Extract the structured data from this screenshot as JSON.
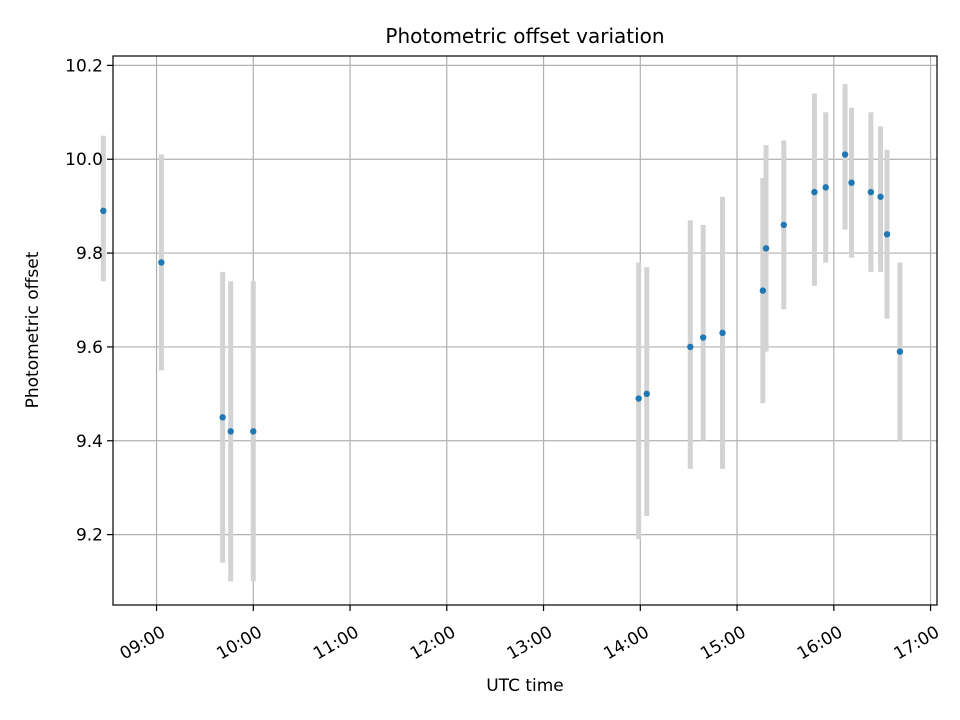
{
  "chart_data": {
    "type": "scatter",
    "title": "Photometric offset variation",
    "xlabel": "UTC time",
    "ylabel": "Photometric offset",
    "x_axis_type": "time",
    "xlim": [
      "08:33",
      "17:04"
    ],
    "ylim": [
      9.05,
      10.22
    ],
    "x_ticks": [
      "09:00",
      "10:00",
      "11:00",
      "12:00",
      "13:00",
      "14:00",
      "15:00",
      "16:00",
      "17:00"
    ],
    "y_ticks": [
      "9.2",
      "9.4",
      "9.6",
      "9.8",
      "10.0",
      "10.2"
    ],
    "grid": true,
    "colors": {
      "point": "#1f77b4",
      "errorbar": "#d3d3d3",
      "grid": "#b0b0b0"
    },
    "points": [
      {
        "x": "08:27",
        "y": 9.89,
        "yerr_low": 9.74,
        "yerr_high": 10.05
      },
      {
        "x": "09:03",
        "y": 9.78,
        "yerr_low": 9.55,
        "yerr_high": 10.01
      },
      {
        "x": "09:41",
        "y": 9.45,
        "yerr_low": 9.14,
        "yerr_high": 9.76
      },
      {
        "x": "09:46",
        "y": 9.42,
        "yerr_low": 9.1,
        "yerr_high": 9.74
      },
      {
        "x": "10:00",
        "y": 9.42,
        "yerr_low": 9.1,
        "yerr_high": 9.74
      },
      {
        "x": "13:59",
        "y": 9.49,
        "yerr_low": 9.19,
        "yerr_high": 9.78
      },
      {
        "x": "14:04",
        "y": 9.5,
        "yerr_low": 9.24,
        "yerr_high": 9.77
      },
      {
        "x": "14:31",
        "y": 9.6,
        "yerr_low": 9.34,
        "yerr_high": 9.87
      },
      {
        "x": "14:39",
        "y": 9.62,
        "yerr_low": 9.4,
        "yerr_high": 9.86
      },
      {
        "x": "14:51",
        "y": 9.63,
        "yerr_low": 9.34,
        "yerr_high": 9.92
      },
      {
        "x": "15:16",
        "y": 9.72,
        "yerr_low": 9.48,
        "yerr_high": 9.96
      },
      {
        "x": "15:18",
        "y": 9.81,
        "yerr_low": 9.59,
        "yerr_high": 10.03
      },
      {
        "x": "15:29",
        "y": 9.86,
        "yerr_low": 9.68,
        "yerr_high": 10.04
      },
      {
        "x": "15:48",
        "y": 9.93,
        "yerr_low": 9.73,
        "yerr_high": 10.14
      },
      {
        "x": "15:55",
        "y": 9.94,
        "yerr_low": 9.78,
        "yerr_high": 10.1
      },
      {
        "x": "16:07",
        "y": 10.01,
        "yerr_low": 9.85,
        "yerr_high": 10.16
      },
      {
        "x": "16:11",
        "y": 9.95,
        "yerr_low": 9.79,
        "yerr_high": 10.11
      },
      {
        "x": "16:23",
        "y": 9.93,
        "yerr_low": 9.76,
        "yerr_high": 10.1
      },
      {
        "x": "16:29",
        "y": 9.92,
        "yerr_low": 9.76,
        "yerr_high": 10.07
      },
      {
        "x": "16:33",
        "y": 9.84,
        "yerr_low": 9.66,
        "yerr_high": 10.02
      },
      {
        "x": "16:41",
        "y": 9.59,
        "yerr_low": 9.4,
        "yerr_high": 9.78
      }
    ]
  }
}
